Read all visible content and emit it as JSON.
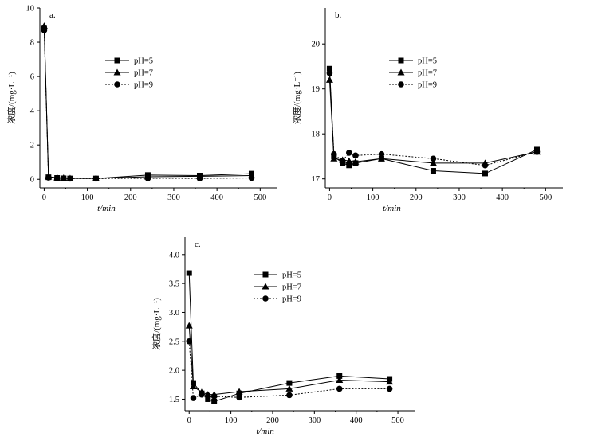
{
  "chart_data": [
    {
      "type": "line",
      "panel_label": "a.",
      "xlabel": "t/min",
      "ylabel": "浓度/(mg·L⁻¹)",
      "xlim": [
        -10,
        540
      ],
      "ylim": [
        -0.5,
        10
      ],
      "xticks": [
        0,
        100,
        200,
        300,
        400,
        500
      ],
      "yticks": [
        0,
        2,
        4,
        6,
        8,
        10
      ],
      "legend_position": "center-right",
      "series": [
        {
          "name": "pH=5",
          "marker": "square",
          "dash": "solid",
          "x": [
            0,
            10,
            30,
            45,
            60,
            120,
            240,
            360,
            480
          ],
          "y": [
            8.8,
            0.12,
            0.08,
            0.06,
            0.05,
            0.05,
            0.25,
            0.22,
            0.33
          ]
        },
        {
          "name": "pH=7",
          "marker": "triangle",
          "dash": "solid",
          "x": [
            0,
            10,
            30,
            45,
            60,
            120,
            240,
            360,
            480
          ],
          "y": [
            8.95,
            0.15,
            0.1,
            0.08,
            0.06,
            0.06,
            0.15,
            0.18,
            0.22
          ]
        },
        {
          "name": "pH=9",
          "marker": "circle",
          "dash": "dotted",
          "x": [
            0,
            10,
            30,
            45,
            60,
            120,
            240,
            360,
            480
          ],
          "y": [
            8.7,
            0.1,
            0.07,
            0.05,
            0.04,
            0.04,
            0.06,
            0.05,
            0.08
          ]
        }
      ]
    },
    {
      "type": "line",
      "panel_label": "b.",
      "xlabel": "t/min",
      "ylabel": "浓度/(mg·L⁻¹)",
      "xlim": [
        -10,
        540
      ],
      "ylim": [
        16.8,
        20.8
      ],
      "xticks": [
        0,
        100,
        200,
        300,
        400,
        500
      ],
      "yticks": [
        17,
        18,
        19,
        20
      ],
      "legend_position": "top-right",
      "series": [
        {
          "name": "pH=5",
          "marker": "square",
          "dash": "solid",
          "x": [
            0,
            10,
            30,
            45,
            60,
            120,
            240,
            360,
            480
          ],
          "y": [
            19.45,
            17.5,
            17.35,
            17.3,
            17.35,
            17.45,
            17.18,
            17.12,
            17.65
          ]
        },
        {
          "name": "pH=7",
          "marker": "triangle",
          "dash": "solid",
          "x": [
            0,
            10,
            30,
            45,
            60,
            120,
            240,
            360,
            480
          ],
          "y": [
            19.2,
            17.45,
            17.42,
            17.4,
            17.38,
            17.45,
            17.35,
            17.35,
            17.6
          ]
        },
        {
          "name": "pH=9",
          "marker": "circle",
          "dash": "dotted",
          "x": [
            0,
            10,
            30,
            45,
            60,
            120,
            240,
            360,
            480
          ],
          "y": [
            19.35,
            17.55,
            17.4,
            17.58,
            17.52,
            17.55,
            17.45,
            17.3,
            17.6
          ]
        }
      ]
    },
    {
      "type": "line",
      "panel_label": "c.",
      "xlabel": "t/min",
      "ylabel": "浓度/(mg·L⁻¹)",
      "xlim": [
        -10,
        540
      ],
      "ylim": [
        1.3,
        4.3
      ],
      "xticks": [
        0,
        100,
        200,
        300,
        400,
        500
      ],
      "yticks": [
        1.5,
        2.0,
        2.5,
        3.0,
        3.5,
        4.0
      ],
      "ytick_labels": [
        "1.5",
        "2.0",
        "2.5",
        "3.0",
        "3.5",
        "4.0"
      ],
      "legend_position": "top-right",
      "series": [
        {
          "name": "pH=5",
          "marker": "square",
          "dash": "solid",
          "x": [
            0,
            10,
            30,
            45,
            60,
            120,
            240,
            360,
            480
          ],
          "y": [
            3.68,
            1.78,
            1.6,
            1.5,
            1.46,
            1.6,
            1.78,
            1.9,
            1.85
          ]
        },
        {
          "name": "pH=7",
          "marker": "triangle",
          "dash": "solid",
          "x": [
            0,
            10,
            30,
            45,
            60,
            120,
            240,
            360,
            480
          ],
          "y": [
            2.77,
            1.72,
            1.62,
            1.58,
            1.58,
            1.63,
            1.68,
            1.83,
            1.8
          ]
        },
        {
          "name": "pH=9",
          "marker": "circle",
          "dash": "dotted",
          "x": [
            0,
            10,
            30,
            45,
            60,
            120,
            240,
            360,
            480
          ],
          "y": [
            2.5,
            1.52,
            1.58,
            1.56,
            1.55,
            1.53,
            1.57,
            1.68,
            1.68
          ]
        }
      ]
    }
  ]
}
